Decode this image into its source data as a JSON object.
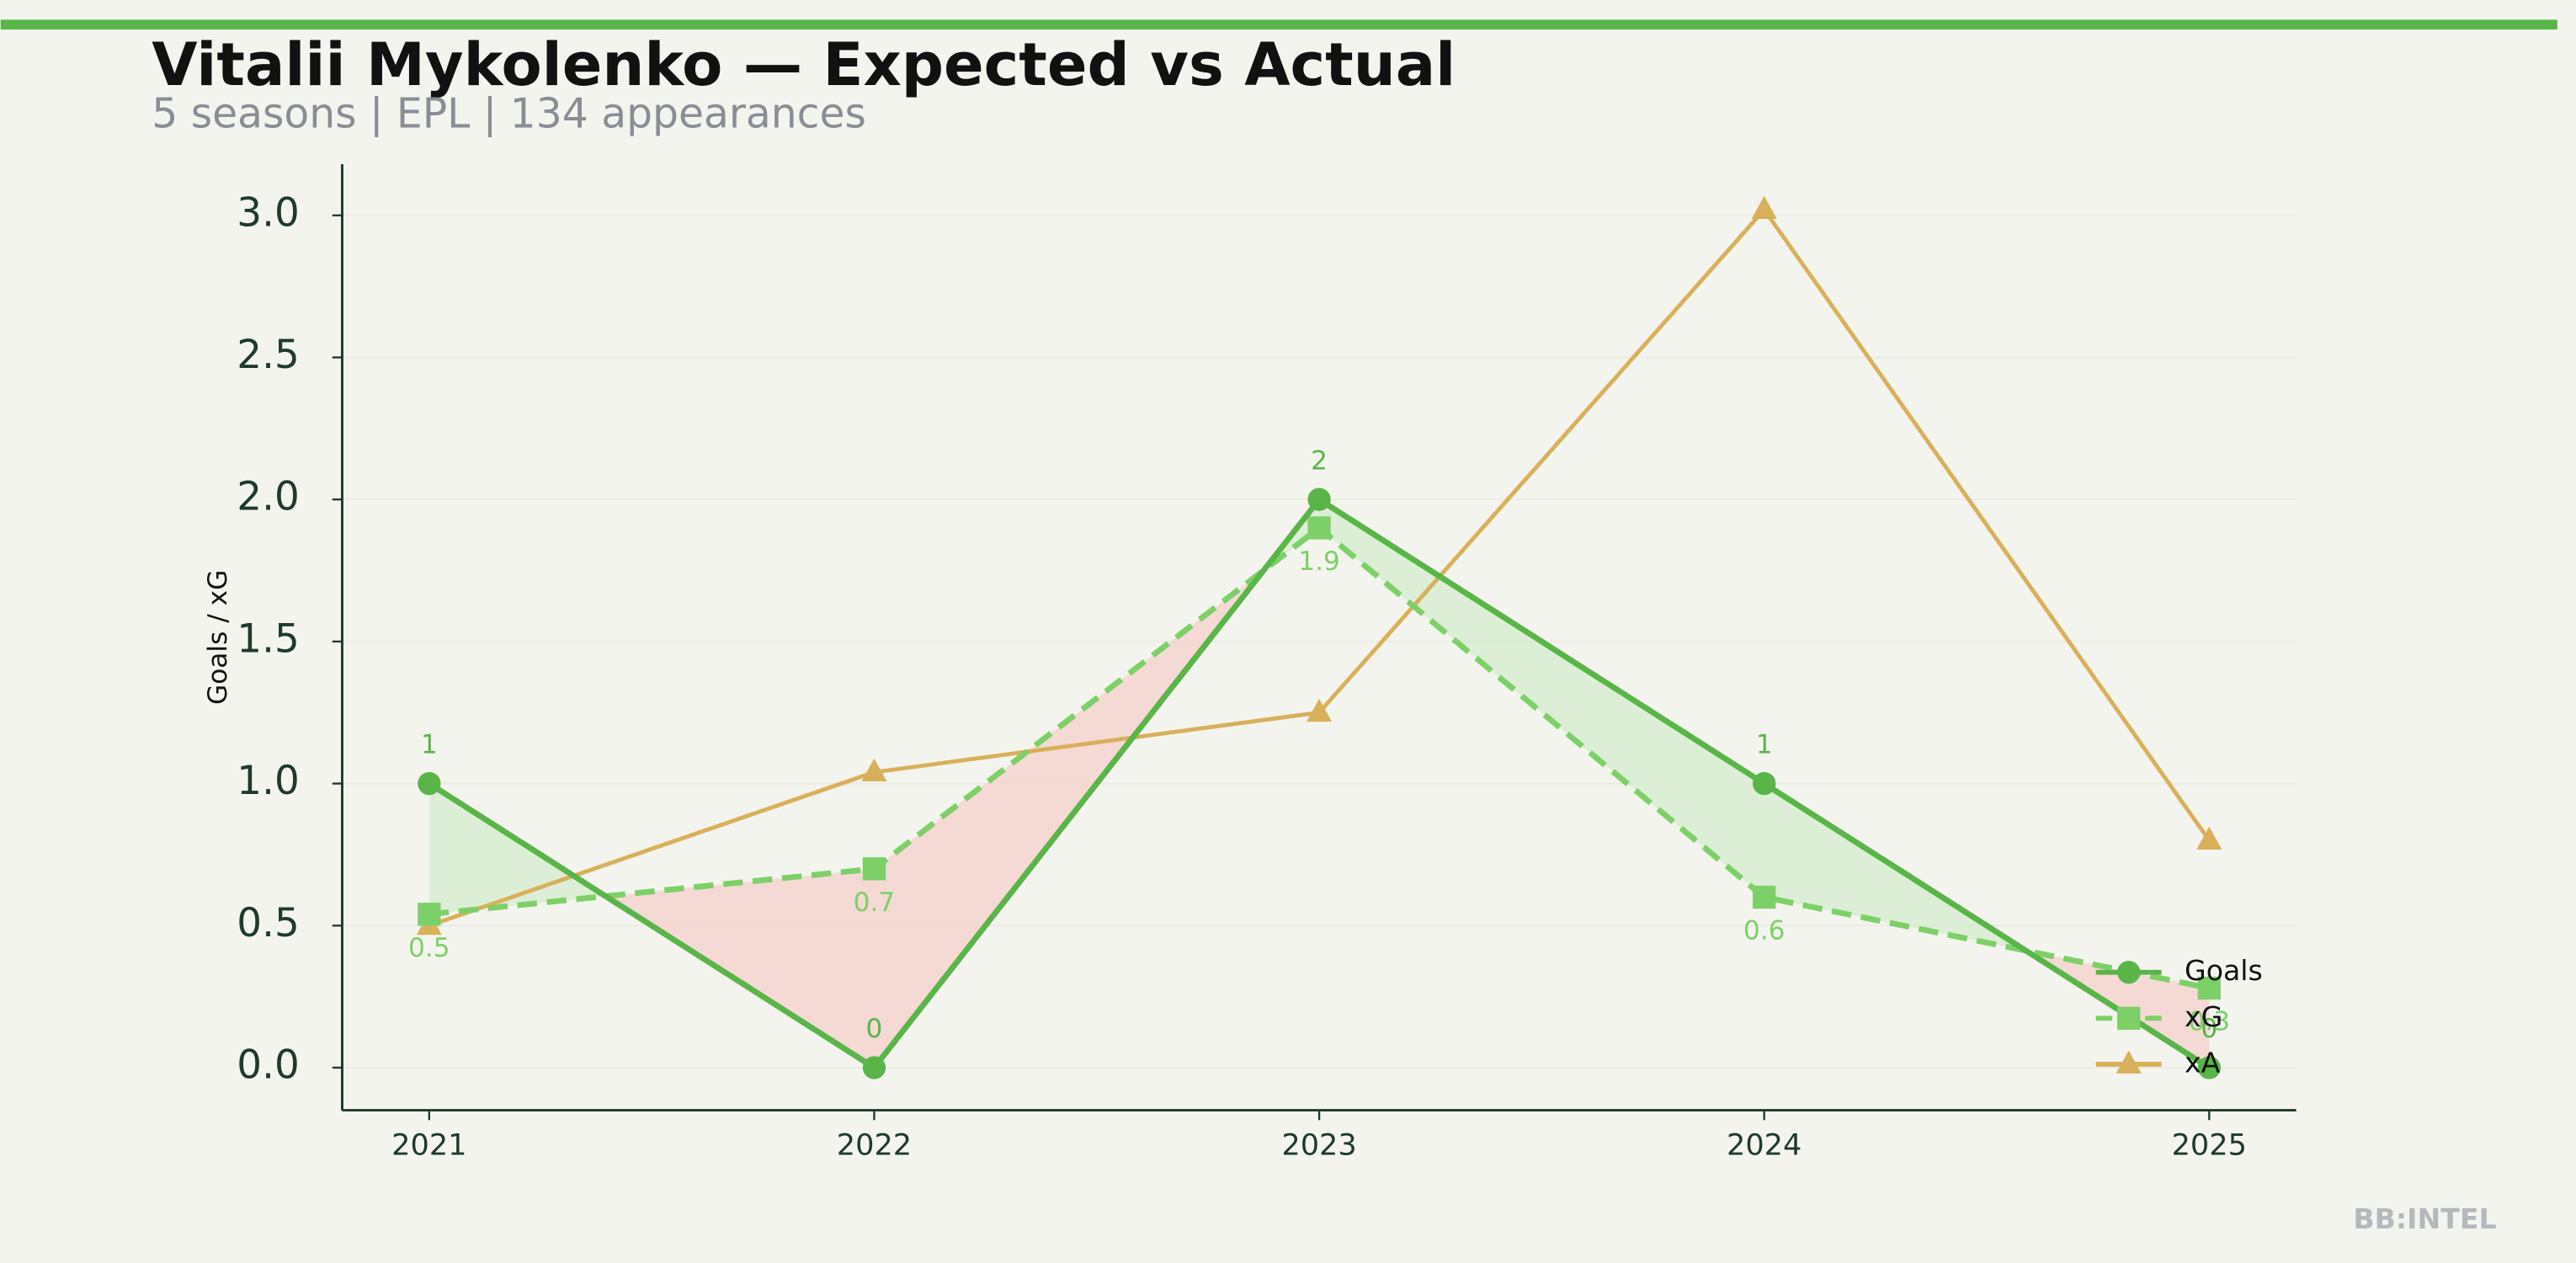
{
  "chart_data": {
    "type": "line",
    "title": "Vitalii Mykolenko — Expected vs Actual",
    "subtitle": "5 seasons | EPL | 134 appearances",
    "ylabel": "Goals / xG",
    "watermark": "BB:INTEL",
    "categories": [
      "2021",
      "2022",
      "2023",
      "2024",
      "2025"
    ],
    "series": [
      {
        "name": "Goals",
        "color": "#59b548",
        "marker": "circle",
        "linestyle": "solid",
        "values": [
          1,
          0,
          2,
          1,
          0
        ]
      },
      {
        "name": "xG",
        "color": "#7dd068",
        "marker": "square",
        "linestyle": "dashed",
        "values": [
          0.54,
          0.7,
          1.9,
          0.6,
          0.28
        ],
        "value_labels": [
          "0.5",
          "0.7",
          "1.9",
          "0.6",
          "0.3"
        ]
      },
      {
        "name": "xA",
        "color": "#d9b05a",
        "marker": "triangle",
        "linestyle": "solid",
        "values": [
          0.5,
          1.04,
          1.25,
          3.02,
          0.8
        ]
      }
    ],
    "ylim": [
      -0.15,
      3.18
    ],
    "yticks": [
      {
        "value": 0,
        "label": "0.0"
      },
      0.5,
      {
        "value": 1,
        "label": "1.0"
      },
      1.5,
      {
        "value": 2,
        "label": "2.0"
      },
      2.5,
      {
        "value": 3,
        "label": "3.0"
      }
    ],
    "grid": true,
    "legend": "lower right",
    "over_color": "#d7ecd0",
    "under_color": "#f5d3cf"
  }
}
